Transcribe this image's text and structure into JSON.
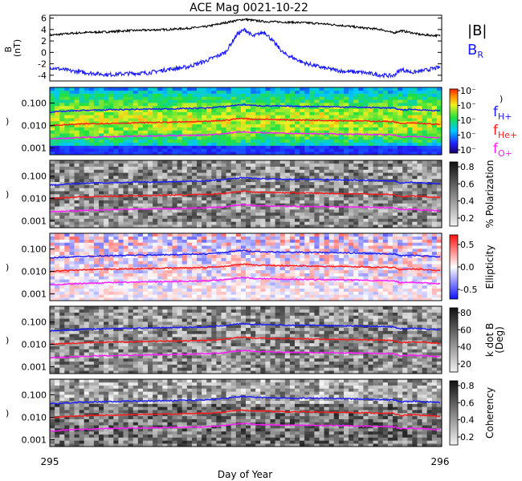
{
  "title": "ACE Mag 0021-10-22",
  "xlabel": "Day of Year",
  "x_ticks": [
    "295",
    "296"
  ],
  "colors": {
    "babs": "#000000",
    "br": "#1a1aff",
    "fH": "#1a1aff",
    "fHe": "#ff1a1a",
    "fO": "#ff1aff"
  },
  "legend": {
    "babs": "|B|",
    "br_main": "B",
    "br_sub": "R",
    "fH_main": "f",
    "fH_sub": "H+",
    "fHe_main": "f",
    "fHe_sub": "He+",
    "fO_main": "f",
    "fO_sub": "O+"
  },
  "chart_data": [
    {
      "type": "line",
      "panel": "magnetic-field",
      "ylabel": "B\n(nT)",
      "ylim": [
        -5,
        6.5
      ],
      "yticks": [
        "-4",
        "-2",
        "0",
        "2",
        "4",
        "6"
      ],
      "x": [
        295.0,
        295.05,
        295.1,
        295.15,
        295.2,
        295.25,
        295.3,
        295.35,
        295.4,
        295.45,
        295.48,
        295.5,
        295.52,
        295.55,
        295.6,
        295.65,
        295.7,
        295.75,
        295.8,
        295.85,
        295.88,
        295.9,
        295.93,
        295.95,
        296.0
      ],
      "series": [
        {
          "name": "|B|",
          "values": [
            3.0,
            3.3,
            3.5,
            3.6,
            3.8,
            3.9,
            4.0,
            4.2,
            4.5,
            5.2,
            5.6,
            5.8,
            5.6,
            5.4,
            5.3,
            5.2,
            5.0,
            4.7,
            4.3,
            4.0,
            3.4,
            3.8,
            3.4,
            3.1,
            2.9
          ]
        },
        {
          "name": "B_R",
          "values": [
            -2.6,
            -3.2,
            -3.6,
            -3.9,
            -3.7,
            -3.6,
            -3.0,
            -2.6,
            -1.5,
            0.0,
            3.2,
            4.0,
            2.8,
            3.6,
            -0.2,
            -1.8,
            -2.7,
            -3.3,
            -3.5,
            -4.0,
            -4.1,
            -3.0,
            -3.5,
            -3.3,
            -2.6
          ]
        }
      ]
    },
    {
      "type": "heatmap",
      "panel": "power-spectrum",
      "colorbar_ticks": [
        "10⁻",
        "10⁻",
        "10⁻",
        "10⁻",
        "10⁻"
      ],
      "colorbar_unit": ")",
      "ylim_log": [
        0.0005,
        0.5
      ],
      "yticks": [
        "0.001",
        "0.010",
        "0.100"
      ]
    },
    {
      "type": "heatmap",
      "panel": "polarization",
      "colorbar_label": "% Polarization",
      "colorbar_ticks": [
        "0.2",
        "0.4",
        "0.6",
        "0.8"
      ],
      "ylim_log": [
        0.0005,
        0.5
      ],
      "yticks": [
        "0.001",
        "0.010",
        "0.100"
      ]
    },
    {
      "type": "heatmap",
      "panel": "ellipticity",
      "colorbar_label": "Ellipticity",
      "colorbar_ticks": [
        "-0.5",
        "0.0",
        "0.5"
      ],
      "ylim_log": [
        0.0005,
        0.5
      ],
      "yticks": [
        "0.001",
        "0.010",
        "0.100"
      ]
    },
    {
      "type": "heatmap",
      "panel": "k-dot-b",
      "colorbar_label": "k dot B\n(Deg)",
      "colorbar_ticks": [
        "20",
        "40",
        "60",
        "80"
      ],
      "ylim_log": [
        0.0005,
        0.5
      ],
      "yticks": [
        "0.001",
        "0.010",
        "0.100"
      ]
    },
    {
      "type": "heatmap",
      "panel": "coherency",
      "colorbar_label": "Coherency",
      "colorbar_ticks": [
        "0.2",
        "0.4",
        "0.6",
        "0.8"
      ],
      "ylim_log": [
        0.0005,
        0.5
      ],
      "yticks": [
        "0.001",
        "0.010",
        "0.100"
      ]
    }
  ],
  "gyrofrequency": {
    "x": [
      295.0,
      295.1,
      295.2,
      295.3,
      295.4,
      295.45,
      295.48,
      295.5,
      295.52,
      295.55,
      295.6,
      295.7,
      295.8,
      295.88,
      295.9,
      295.93,
      296.0
    ],
    "fH": [
      0.04,
      0.048,
      0.052,
      0.055,
      0.06,
      0.07,
      0.082,
      0.085,
      0.078,
      0.075,
      0.072,
      0.07,
      0.065,
      0.06,
      0.05,
      0.052,
      0.045
    ],
    "fHe": [
      0.01,
      0.012,
      0.013,
      0.014,
      0.015,
      0.017,
      0.02,
      0.021,
      0.019,
      0.019,
      0.018,
      0.017,
      0.016,
      0.015,
      0.012,
      0.013,
      0.011
    ],
    "fO": [
      0.0025,
      0.003,
      0.0033,
      0.0035,
      0.0038,
      0.0043,
      0.0051,
      0.0053,
      0.0049,
      0.0047,
      0.0045,
      0.0043,
      0.0041,
      0.0038,
      0.0031,
      0.0033,
      0.0028
    ]
  }
}
